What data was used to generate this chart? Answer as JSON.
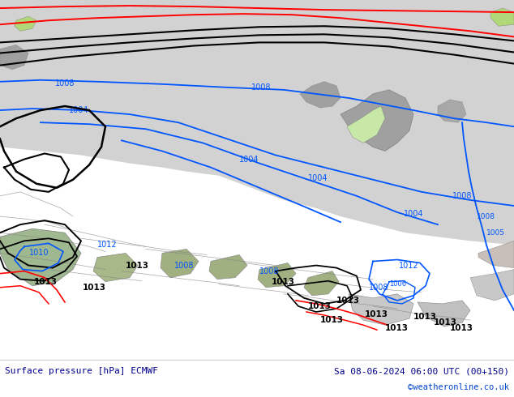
{
  "title_left": "Surface pressure [hPa] ECMWF",
  "title_right": "Sa 08-06-2024 06:00 UTC (00+150)",
  "credit": "©weatheronline.co.uk",
  "fig_width": 6.34,
  "fig_height": 4.9,
  "dpi": 100,
  "map_bg_gray": "#d2d2d2",
  "map_bg_green": "#b0d878",
  "land_gray": "#a8a8a8",
  "land_light_green": "#c8e8a8",
  "sea_gray": "#c8c8c8",
  "border_color": "#808080",
  "blue": "#0055ff",
  "black": "#000000",
  "red": "#ff0000",
  "footer_bg": "#ffffff",
  "footer_text_dark": "#00008B",
  "credit_color": "#0044cc",
  "label_fontsize": 7,
  "footer_fontsize": 8
}
